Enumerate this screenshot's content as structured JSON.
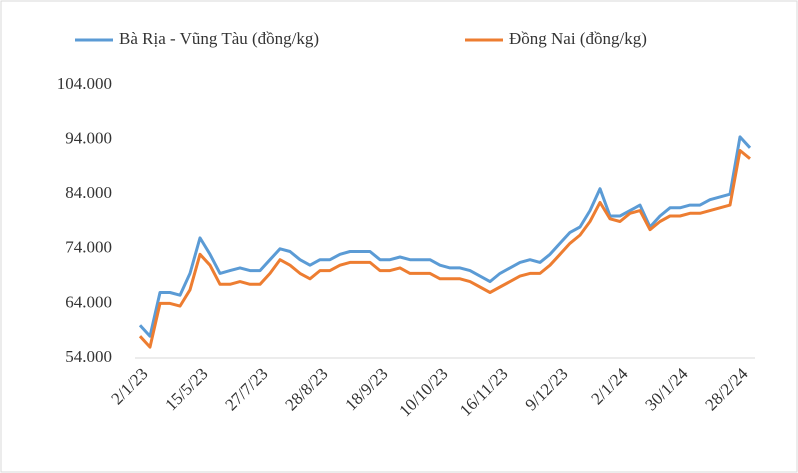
{
  "chart_data": {
    "type": "line",
    "categories": [
      "2/1/23",
      null,
      null,
      null,
      null,
      null,
      "15/5/23",
      null,
      null,
      null,
      null,
      null,
      "27/7/23",
      null,
      null,
      null,
      null,
      null,
      "28/8/23",
      null,
      null,
      null,
      null,
      null,
      "18/9/23",
      null,
      null,
      null,
      null,
      null,
      "10/10/23",
      null,
      null,
      null,
      null,
      null,
      "16/11/23",
      null,
      null,
      null,
      null,
      null,
      "9/12/23",
      null,
      null,
      null,
      null,
      null,
      "2/1/24",
      null,
      null,
      null,
      null,
      null,
      "30/1/24",
      null,
      null,
      null,
      null,
      null,
      "28/2/24",
      null
    ],
    "series": [
      {
        "name": "Bà Rịa - Vũng Tàu (đồng/kg)",
        "color": "#5b9bd5",
        "values": [
          60000,
          58000,
          66000,
          66000,
          65500,
          69500,
          76000,
          73000,
          69500,
          70000,
          70500,
          70000,
          70000,
          72000,
          74000,
          73500,
          72000,
          71000,
          72000,
          72000,
          73000,
          73500,
          73500,
          73500,
          72000,
          72000,
          72500,
          72000,
          72000,
          72000,
          71000,
          70500,
          70500,
          70000,
          69000,
          68000,
          69500,
          70500,
          71500,
          72000,
          71500,
          73000,
          75000,
          77000,
          78000,
          81000,
          85000,
          80000,
          80000,
          81000,
          82000,
          78000,
          80000,
          81500,
          81500,
          82000,
          82000,
          83000,
          83500,
          84000,
          94500,
          92500
        ]
      },
      {
        "name": "Đồng Nai (đồng/kg)",
        "color": "#ed7d31",
        "values": [
          58000,
          56000,
          64000,
          64000,
          63500,
          66500,
          73000,
          71000,
          67500,
          67500,
          68000,
          67500,
          67500,
          69500,
          72000,
          71000,
          69500,
          68500,
          70000,
          70000,
          71000,
          71500,
          71500,
          71500,
          70000,
          70000,
          70500,
          69500,
          69500,
          69500,
          68500,
          68500,
          68500,
          68000,
          67000,
          66000,
          67000,
          68000,
          69000,
          69500,
          69500,
          71000,
          73000,
          75000,
          76500,
          79000,
          82500,
          79500,
          79000,
          80500,
          81000,
          77500,
          79000,
          80000,
          80000,
          80500,
          80500,
          81000,
          81500,
          82000,
          92000,
          90500
        ]
      }
    ],
    "ylim": [
      54000,
      104000
    ],
    "yticks": [
      {
        "value": 54000,
        "label": "54.000"
      },
      {
        "value": 64000,
        "label": "64.000"
      },
      {
        "value": 74000,
        "label": "74.000"
      },
      {
        "value": 84000,
        "label": "84.000"
      },
      {
        "value": 94000,
        "label": "94.000"
      },
      {
        "value": 104000,
        "label": "104.000"
      }
    ],
    "legend": "top"
  }
}
